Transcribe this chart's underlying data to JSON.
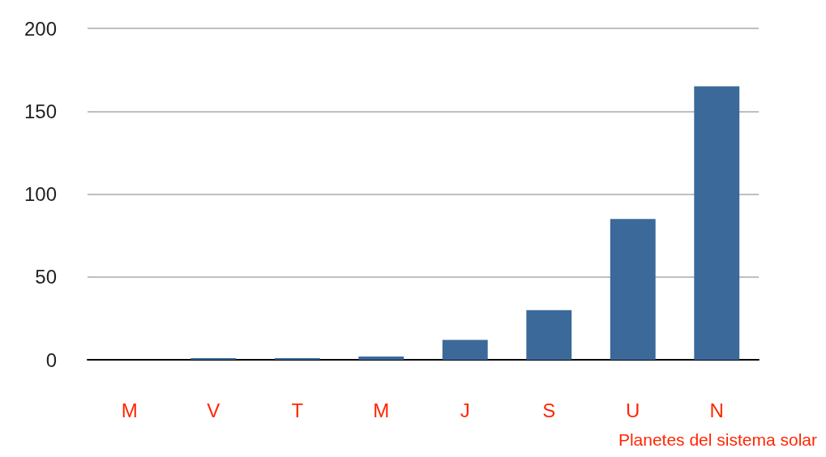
{
  "chart_data": {
    "type": "bar",
    "xlabel": "Planetes del sistema solar",
    "categories": [
      "M",
      "V",
      "T",
      "M",
      "J",
      "S",
      "U",
      "N"
    ],
    "values": [
      0,
      1,
      1,
      2,
      12,
      30,
      85,
      165
    ],
    "color": "#3b6999",
    "ylim": [
      0,
      200
    ],
    "yticks": [
      0,
      50,
      100,
      150,
      200
    ],
    "grid": "y"
  }
}
